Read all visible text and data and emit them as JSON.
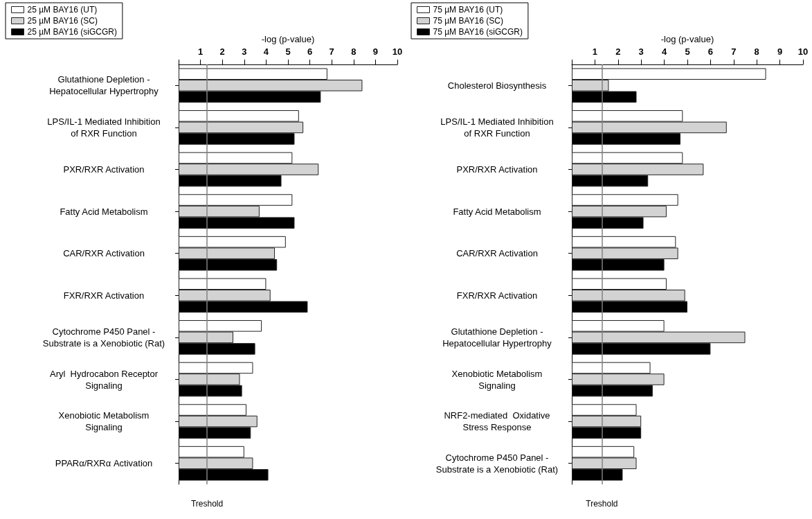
{
  "chart_data": [
    {
      "type": "bar",
      "orientation": "horizontal",
      "xlabel": "-log (p-value)",
      "categories": [
        "Glutathione Depletion -\nHepatocellular Hypertrophy",
        "LPS/IL-1 Mediated Inhibition\nof RXR Function",
        "PXR/RXR Activation",
        "Fatty Acid Metabolism",
        "CAR/RXR Activation",
        "FXR/RXR Activation",
        "Cytochrome P450 Panel -\nSubstrate is a Xenobiotic (Rat)",
        "Aryl  Hydrocabon Receptor\nSignaling",
        "Xenobiotic Metabolism\nSignaling",
        "PPARα/RXRα Activation"
      ],
      "series": [
        {
          "name": "25 µM BAY16 (UT)",
          "color": "#ffffff",
          "values": [
            6.8,
            5.5,
            5.2,
            5.2,
            4.9,
            4.0,
            3.8,
            3.4,
            3.1,
            3.0
          ]
        },
        {
          "name": "25 µM BAY16 (SC)",
          "color": "#d3d3d3",
          "values": [
            8.4,
            5.7,
            6.4,
            3.7,
            4.4,
            4.2,
            2.5,
            2.8,
            3.6,
            3.4
          ]
        },
        {
          "name": "25 µM BAY16 (siGCGR)",
          "color": "#000000",
          "values": [
            6.5,
            5.3,
            4.7,
            5.3,
            4.5,
            5.9,
            3.5,
            2.9,
            3.3,
            4.1
          ]
        }
      ],
      "xlim": [
        0,
        10
      ],
      "xticks": [
        {
          "value": 0,
          "label": null
        },
        1,
        2,
        3,
        4,
        5,
        6,
        7,
        8,
        9,
        10
      ],
      "ref_lines": [
        {
          "axis": "x",
          "value": 1.3,
          "label": "Treshold",
          "color": "#808080"
        }
      ],
      "legend": "top left",
      "grid": false
    },
    {
      "type": "bar",
      "orientation": "horizontal",
      "xlabel": "-log (p-value)",
      "categories": [
        "Cholesterol Biosynthesis",
        "LPS/IL-1 Mediated Inhibition\nof RXR Function",
        "PXR/RXR Activation",
        "Fatty Acid Metabolism",
        "CAR/RXR Activation",
        "FXR/RXR Activation",
        "Glutathione Depletion -\nHepatocellular Hypertrophy",
        "Xenobiotic Metabolism\nSignaling",
        "NRF2-mediated  Oxidative\nStress Response",
        "Cytochrome P450 Panel -\nSubstrate is a Xenobiotic (Rat)"
      ],
      "series": [
        {
          "name": "75 µM BAY16 (UT)",
          "color": "#ffffff",
          "values": [
            8.4,
            4.8,
            4.8,
            4.6,
            4.5,
            4.1,
            4.0,
            3.4,
            2.8,
            2.7
          ]
        },
        {
          "name": "75 µM BAY16 (SC)",
          "color": "#d3d3d3",
          "values": [
            1.6,
            6.7,
            5.7,
            4.1,
            4.6,
            4.9,
            7.5,
            4.0,
            3.0,
            2.8
          ]
        },
        {
          "name": "75 µM BAY16 (siGCGR)",
          "color": "#000000",
          "values": [
            2.8,
            4.7,
            3.3,
            3.1,
            4.0,
            5.0,
            6.0,
            3.5,
            3.0,
            2.2
          ]
        }
      ],
      "xlim": [
        0,
        10
      ],
      "xticks": [
        {
          "value": 0,
          "label": null
        },
        1,
        2,
        3,
        4,
        5,
        6,
        7,
        8,
        9,
        10
      ],
      "ref_lines": [
        {
          "axis": "x",
          "value": 1.3,
          "label": "Treshold",
          "color": "#808080"
        }
      ],
      "legend": "top left",
      "grid": false
    }
  ]
}
